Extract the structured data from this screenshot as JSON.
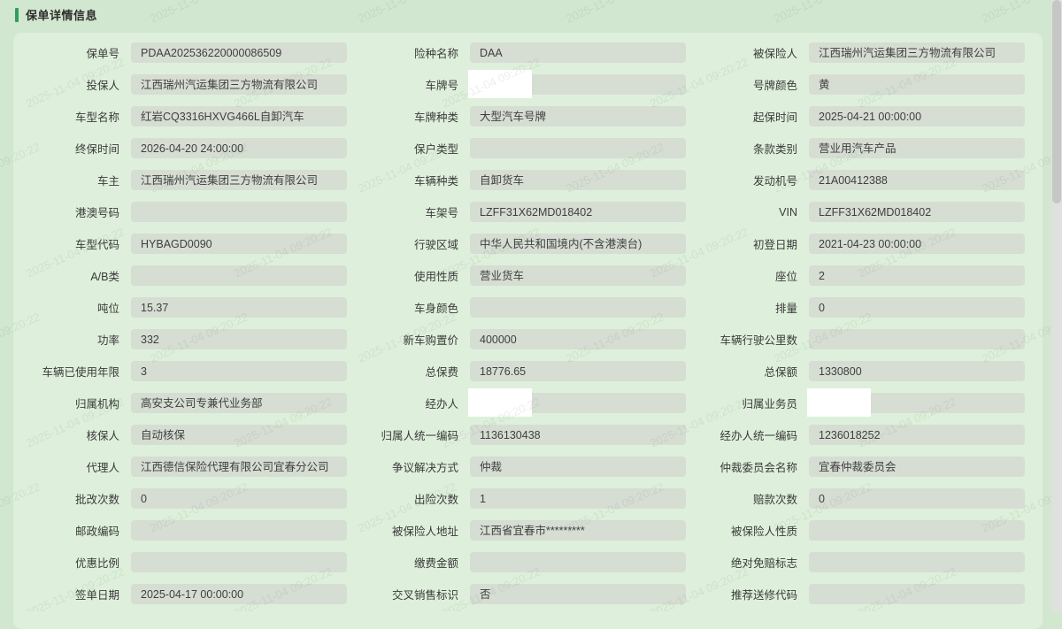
{
  "page": {
    "title": "保单详情信息",
    "accent_color": "#2f9f5e",
    "background_color": "#d2e7cf",
    "panel_color": "#def0db",
    "field_background": "#d6ddd3",
    "watermark": "2025-11-04 09:20:22"
  },
  "form": {
    "fields": [
      {
        "name": "policy-no",
        "label": "保单号",
        "value": "PDAA202536220000086509",
        "redacted": false
      },
      {
        "name": "insurance-type-name",
        "label": "险种名称",
        "value": "DAA",
        "redacted": false
      },
      {
        "name": "insured",
        "label": "被保险人",
        "value": "江西瑞州汽运集团三方物流有限公司",
        "redacted": false
      },
      {
        "name": "applicant",
        "label": "投保人",
        "value": "江西瑞州汽运集团三方物流有限公司",
        "redacted": false
      },
      {
        "name": "plate-no",
        "label": "车牌号",
        "value": "",
        "redacted": true
      },
      {
        "name": "plate-color",
        "label": "号牌颜色",
        "value": "黄",
        "redacted": false
      },
      {
        "name": "vehicle-model-name",
        "label": "车型名称",
        "value": "红岩CQ3316HXVG466L自卸汽车",
        "redacted": false
      },
      {
        "name": "plate-type",
        "label": "车牌种类",
        "value": "大型汽车号牌",
        "redacted": false
      },
      {
        "name": "start-time",
        "label": "起保时间",
        "value": "2025-04-21 00:00:00",
        "redacted": false
      },
      {
        "name": "end-time",
        "label": "终保时间",
        "value": "2026-04-20 24:00:00",
        "redacted": false
      },
      {
        "name": "policyholder-type",
        "label": "保户类型",
        "value": "",
        "redacted": false
      },
      {
        "name": "clause-category",
        "label": "条款类别",
        "value": "营业用汽车产品",
        "redacted": false
      },
      {
        "name": "owner",
        "label": "车主",
        "value": "江西瑞州汽运集团三方物流有限公司",
        "redacted": false
      },
      {
        "name": "vehicle-category",
        "label": "车辆种类",
        "value": "自卸货车",
        "redacted": false
      },
      {
        "name": "engine-no",
        "label": "发动机号",
        "value": "21A00412388",
        "redacted": false
      },
      {
        "name": "hk-macau-no",
        "label": "港澳号码",
        "value": "",
        "redacted": false
      },
      {
        "name": "frame-no",
        "label": "车架号",
        "value": "LZFF31X62MD018402",
        "redacted": false
      },
      {
        "name": "vin",
        "label": "VIN",
        "value": "LZFF31X62MD018402",
        "redacted": false
      },
      {
        "name": "model-code",
        "label": "车型代码",
        "value": "HYBAGD0090",
        "redacted": false
      },
      {
        "name": "driving-area",
        "label": "行驶区域",
        "value": "中华人民共和国境内(不含港澳台)",
        "redacted": false
      },
      {
        "name": "first-reg-date",
        "label": "初登日期",
        "value": "2021-04-23 00:00:00",
        "redacted": false
      },
      {
        "name": "ab-class",
        "label": "A/B类",
        "value": "",
        "redacted": false
      },
      {
        "name": "usage-nature",
        "label": "使用性质",
        "value": "营业货车",
        "redacted": false
      },
      {
        "name": "seats",
        "label": "座位",
        "value": "2",
        "redacted": false
      },
      {
        "name": "tonnage",
        "label": "吨位",
        "value": "15.37",
        "redacted": false
      },
      {
        "name": "body-color",
        "label": "车身颜色",
        "value": "",
        "redacted": false
      },
      {
        "name": "displacement",
        "label": "排量",
        "value": "0",
        "redacted": false
      },
      {
        "name": "power",
        "label": "功率",
        "value": "332",
        "redacted": false
      },
      {
        "name": "new-car-price",
        "label": "新车购置价",
        "value": "400000",
        "redacted": false
      },
      {
        "name": "mileage",
        "label": "车辆行驶公里数",
        "value": "",
        "redacted": false
      },
      {
        "name": "vehicle-used-years",
        "label": "车辆已使用年限",
        "value": "3",
        "redacted": false
      },
      {
        "name": "total-premium",
        "label": "总保费",
        "value": "18776.65",
        "redacted": false
      },
      {
        "name": "total-insured-amount",
        "label": "总保额",
        "value": "1330800",
        "redacted": false
      },
      {
        "name": "owning-org",
        "label": "归属机构",
        "value": "高安支公司专兼代业务部",
        "redacted": false
      },
      {
        "name": "handler",
        "label": "经办人",
        "value": "",
        "redacted": true
      },
      {
        "name": "owning-salesman",
        "label": "归属业务员",
        "value": "",
        "redacted": true
      },
      {
        "name": "underwriter",
        "label": "核保人",
        "value": "自动核保",
        "redacted": false
      },
      {
        "name": "owner-unified-code",
        "label": "归属人统一编码",
        "value": "1136130438",
        "redacted": false
      },
      {
        "name": "handler-unified-code",
        "label": "经办人统一编码",
        "value": "1236018252",
        "redacted": false
      },
      {
        "name": "agent",
        "label": "代理人",
        "value": "江西德信保险代理有限公司宜春分公司",
        "redacted": false
      },
      {
        "name": "dispute-resolution",
        "label": "争议解决方式",
        "value": "仲裁",
        "redacted": false
      },
      {
        "name": "arbitration-committee",
        "label": "仲裁委员会名称",
        "value": "宜春仲裁委员会",
        "redacted": false
      },
      {
        "name": "endorsement-count",
        "label": "批改次数",
        "value": "0",
        "redacted": false
      },
      {
        "name": "accident-count",
        "label": "出险次数",
        "value": "1",
        "redacted": false
      },
      {
        "name": "claim-count",
        "label": "赔款次数",
        "value": "0",
        "redacted": false
      },
      {
        "name": "postal-code",
        "label": "邮政编码",
        "value": "",
        "redacted": false
      },
      {
        "name": "insured-address",
        "label": "被保险人地址",
        "value": "江西省宜春市*********",
        "redacted": false
      },
      {
        "name": "insured-nature",
        "label": "被保险人性质",
        "value": "",
        "redacted": false
      },
      {
        "name": "discount-ratio",
        "label": "优惠比例",
        "value": "",
        "redacted": false
      },
      {
        "name": "payment-amount",
        "label": "缴费金额",
        "value": "",
        "redacted": false
      },
      {
        "name": "absolute-deductible-flag",
        "label": "绝对免赔标志",
        "value": "",
        "redacted": false
      },
      {
        "name": "sign-date",
        "label": "签单日期",
        "value": "2025-04-17 00:00:00",
        "redacted": false
      },
      {
        "name": "cross-sale-flag",
        "label": "交叉销售标识",
        "value": "否",
        "redacted": false
      },
      {
        "name": "recommended-repair-code",
        "label": "推荐送修代码",
        "value": "",
        "redacted": false
      }
    ]
  }
}
